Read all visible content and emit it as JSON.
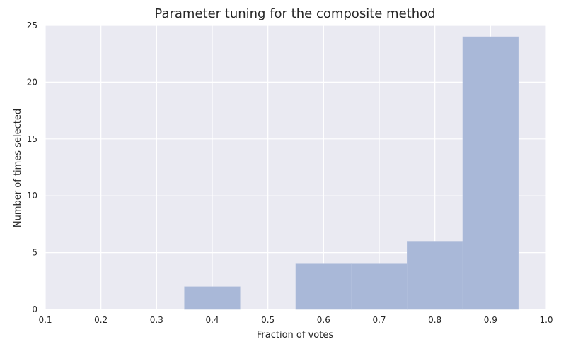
{
  "chart_data": {
    "type": "bar",
    "title": "Parameter tuning for the composite method",
    "xlabel": "Fraction of votes",
    "ylabel": "Number of times selected",
    "xlim": [
      0.1,
      1.0
    ],
    "ylim": [
      0,
      25
    ],
    "x_ticks": [
      "0.1",
      "0.2",
      "0.3",
      "0.4",
      "0.5",
      "0.6",
      "0.7",
      "0.8",
      "0.9",
      "1.0"
    ],
    "y_ticks": [
      "0",
      "5",
      "10",
      "15",
      "20",
      "25"
    ],
    "grid": true,
    "bins": [
      {
        "x0": 0.35,
        "x1": 0.45,
        "count": 2
      },
      {
        "x0": 0.55,
        "x1": 0.65,
        "count": 4
      },
      {
        "x0": 0.65,
        "x1": 0.75,
        "count": 4
      },
      {
        "x0": 0.75,
        "x1": 0.85,
        "count": 6
      },
      {
        "x0": 0.85,
        "x1": 0.95,
        "count": 24
      }
    ],
    "colors": {
      "background": "#eaeaf2",
      "grid": "#ffffff",
      "bar": "#a9b8d8"
    }
  }
}
